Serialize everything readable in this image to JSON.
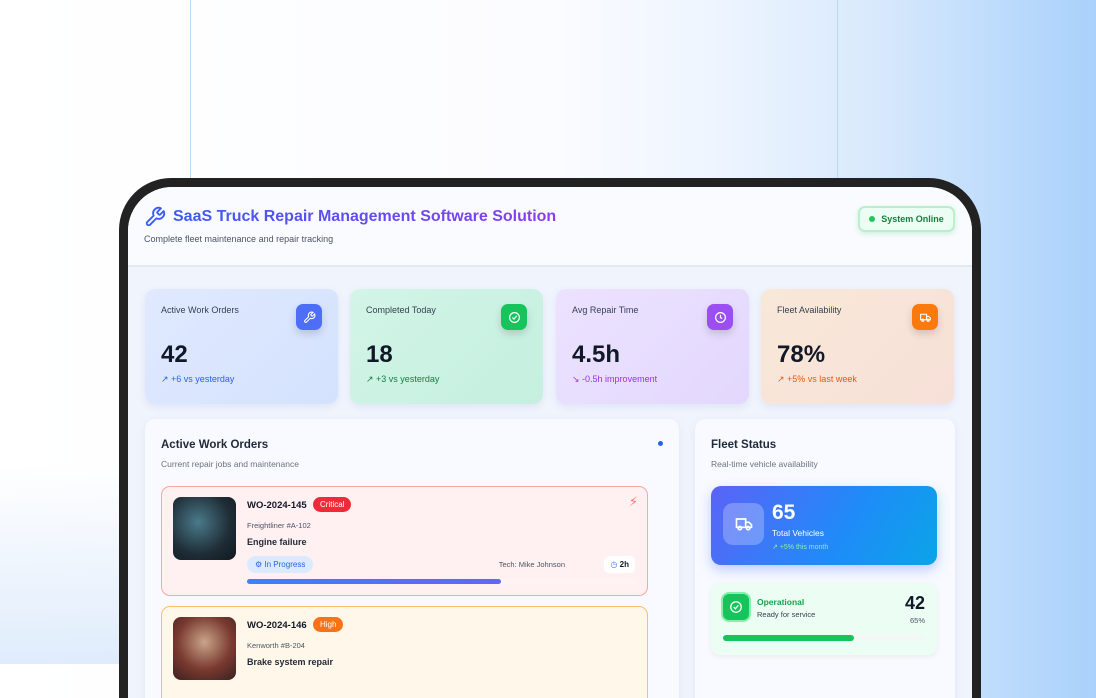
{
  "header": {
    "title": "SaaS Truck Repair Management Software Solution",
    "subtitle": "Complete fleet maintenance and repair tracking",
    "status": "System Online"
  },
  "stats": [
    {
      "label": "Active Work Orders",
      "value": "42",
      "change": "+6 vs yesterday",
      "icon": "wrench-icon",
      "color": "#4f6ef7"
    },
    {
      "label": "Completed Today",
      "value": "18",
      "change": "+3 vs yesterday",
      "icon": "check-circle-icon",
      "color": "#16c45b"
    },
    {
      "label": "Avg Repair Time",
      "value": "4.5h",
      "change": "-0.5h improvement",
      "icon": "clock-icon",
      "color": "#9b4ff2"
    },
    {
      "label": "Fleet Availability",
      "value": "78%",
      "change": "+5% vs last week",
      "icon": "truck-icon",
      "color": "#fb7a0e"
    }
  ],
  "work_orders": {
    "title": "Active Work Orders",
    "subtitle": "Current repair jobs and maintenance",
    "items": [
      {
        "id": "WO-2024-145",
        "priority": "Critical",
        "vehicle": "Freightliner #A-102",
        "issue": "Engine failure",
        "status": "In Progress",
        "tech": "Tech: Mike Johnson",
        "time": "2h",
        "progress": 65
      },
      {
        "id": "WO-2024-146",
        "priority": "High",
        "vehicle": "Kenworth #B-204",
        "issue": "Brake system repair"
      }
    ]
  },
  "fleet": {
    "title": "Fleet Status",
    "subtitle": "Real-time vehicle availability",
    "total": "65",
    "total_label": "Total Vehicles",
    "growth": "+5% this month",
    "operational": {
      "label": "Operational",
      "desc": "Ready for service",
      "count": "42",
      "percent": "65%",
      "progress": 65
    }
  }
}
